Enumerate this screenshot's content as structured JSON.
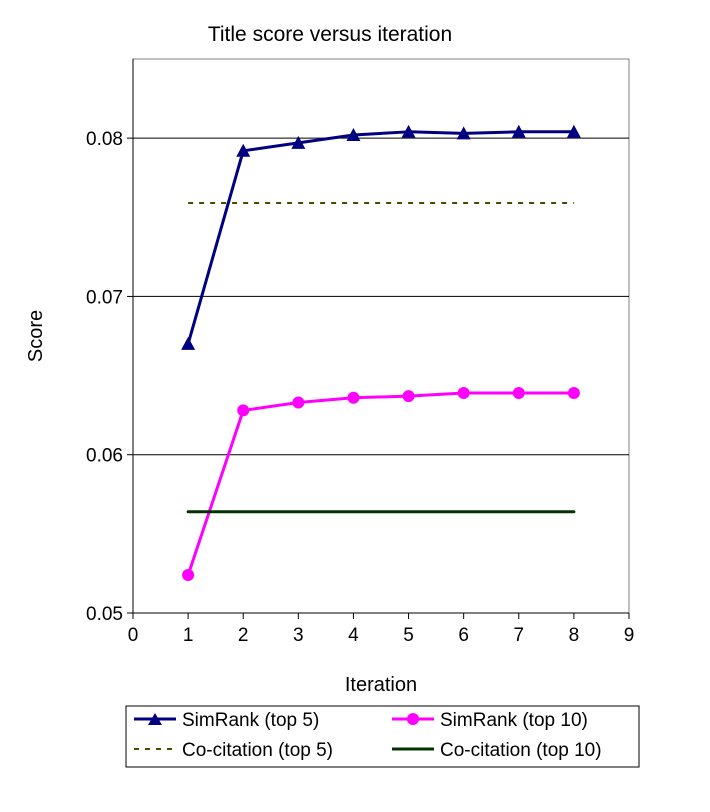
{
  "chart_data": {
    "type": "line",
    "title": "Title score versus iteration",
    "xlabel": "Iteration",
    "ylabel": "Score",
    "xlim": [
      0,
      9
    ],
    "ylim": [
      0.05,
      0.085
    ],
    "xticks": [
      "0",
      "1",
      "2",
      "3",
      "4",
      "5",
      "6",
      "7",
      "8",
      "9"
    ],
    "yticks": [
      "0.05",
      "0.06",
      "0.07",
      "0.08"
    ],
    "gridlines": [
      0.06,
      0.07,
      0.08
    ],
    "series": [
      {
        "name": "SimRank (top 5)",
        "color": "#000080",
        "marker": "triangle",
        "style": "solid",
        "x": [
          1,
          2,
          3,
          4,
          5,
          6,
          7,
          8
        ],
        "y": [
          0.067,
          0.0792,
          0.0797,
          0.0802,
          0.0804,
          0.0803,
          0.0804,
          0.0804
        ]
      },
      {
        "name": "SimRank (top 10)",
        "color": "#ff00ff",
        "marker": "circle",
        "style": "solid",
        "x": [
          1,
          2,
          3,
          4,
          5,
          6,
          7,
          8
        ],
        "y": [
          0.0524,
          0.0628,
          0.0633,
          0.0636,
          0.0637,
          0.0639,
          0.0639,
          0.0639
        ]
      },
      {
        "name": "Co-citation (top 5)",
        "color": "#4b4b00",
        "marker": "none",
        "style": "dashed",
        "x": [
          1,
          8
        ],
        "y": [
          0.0759,
          0.0759
        ]
      },
      {
        "name": "Co-citation (top 10)",
        "color": "#003300",
        "marker": "none",
        "style": "solid",
        "x": [
          1,
          8
        ],
        "y": [
          0.0564,
          0.0564
        ]
      }
    ],
    "legend": {
      "placement": "bottom",
      "entries": [
        "SimRank (top 5)",
        "SimRank (top 10)",
        "Co-citation (top 5)",
        "Co-citation (top 10)"
      ]
    }
  }
}
